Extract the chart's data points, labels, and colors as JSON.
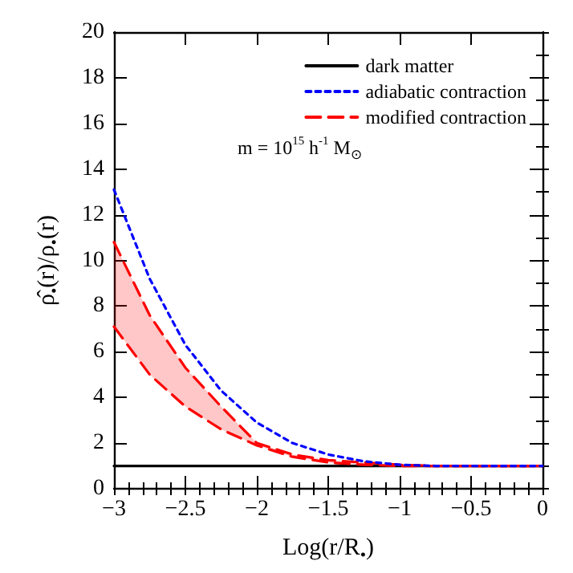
{
  "chart_data": {
    "type": "line",
    "xlabel": "Log(r/R$_{•}$)",
    "ylabel": "ρ̂$_{•}$(r)/ρ$_{•}$(r)",
    "annotations": [
      "m = 10$^{15}$ h$^{-1}$ M$_{⊙}$"
    ],
    "x": [
      -3,
      -2.75,
      -2.5,
      -2.25,
      -2,
      -1.75,
      -1.5,
      -1.25,
      -1,
      -0.75,
      -0.5,
      -0.25,
      0
    ],
    "series": [
      {
        "name": "dark matter",
        "color": "#000000",
        "line_style": "solid",
        "values": [
          1,
          1,
          1,
          1,
          1,
          1,
          1,
          1,
          1,
          1,
          1,
          1,
          1
        ]
      },
      {
        "name": "adiabatic contraction",
        "color": "#0000ff",
        "line_style": "dotted",
        "values": [
          13.1,
          9.2,
          6.3,
          4.3,
          2.9,
          2.0,
          1.5,
          1.2,
          1.05,
          1.0,
          1.0,
          1.0,
          1.0
        ]
      },
      {
        "name": "modified contraction",
        "color": "#ff0000",
        "line_style": "dashed",
        "values": [
          10.8,
          7.6,
          5.3,
          3.6,
          2.0,
          1.5,
          1.25,
          1.15,
          1.05,
          1.0,
          1.0,
          1.0,
          1.0
        ],
        "lower": [
          7.1,
          5.0,
          3.6,
          2.6,
          1.9,
          1.4,
          1.15,
          1.05,
          1.0,
          1.0,
          1.0,
          1.0,
          1.0
        ],
        "upper": [
          10.8,
          7.6,
          5.3,
          3.6,
          2.0,
          1.5,
          1.25,
          1.15,
          1.05,
          1.0,
          1.0,
          1.0,
          1.0
        ]
      },
      {
        "color": "#ff0000",
        "line_style": "dashed",
        "values": [
          7.1,
          5.0,
          3.6,
          2.6,
          1.9,
          1.4,
          1.15,
          1.05,
          1.0,
          1.0,
          1.0,
          1.0,
          1.0
        ]
      }
    ],
    "xlim": [
      -3,
      0
    ],
    "xticks": [
      -3,
      -2.5,
      -2,
      -1.5,
      -1,
      -0.5,
      0
    ],
    "ylim": [
      0,
      20
    ],
    "yticks": [
      0,
      2,
      4,
      6,
      8,
      10,
      12,
      14,
      16,
      18,
      20
    ],
    "legend": "top right",
    "grid": false,
    "marker": "none"
  }
}
